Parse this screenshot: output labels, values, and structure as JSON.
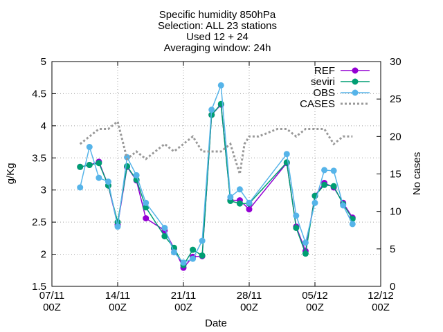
{
  "chart_data": {
    "type": "line",
    "title_lines": [
      "Specific humidity 850hPa",
      "Selection: ALL      23 stations",
      "Used 12 + 24",
      "Averaging window: 24h"
    ],
    "xlabel": "Date",
    "ylabel": "g/Kg",
    "y2label": "No cases",
    "x_range": [
      0,
      35
    ],
    "ylim": [
      1.5,
      5
    ],
    "y2lim": [
      0,
      30
    ],
    "y_ticks": [
      "1.5",
      "2",
      "2.5",
      "3",
      "3.5",
      "4",
      "4.5",
      "5"
    ],
    "y2_ticks": [
      "0",
      "5",
      "10",
      "15",
      "20",
      "25",
      "30"
    ],
    "x_ticks": [
      {
        "x": 0,
        "date": "07/11",
        "hour": "00Z"
      },
      {
        "x": 7,
        "date": "14/11",
        "hour": "00Z"
      },
      {
        "x": 14,
        "date": "21/11",
        "hour": "00Z"
      },
      {
        "x": 21,
        "date": "28/11",
        "hour": "00Z"
      },
      {
        "x": 28,
        "date": "05/12",
        "hour": "00Z"
      },
      {
        "x": 35,
        "date": "12/12",
        "hour": "00Z"
      }
    ],
    "grid": true,
    "legend_position": "top-right",
    "series": [
      {
        "name": "REF",
        "color": "#9400d3",
        "marker": "circle",
        "axis": "y",
        "points": [
          [
            3.0,
            3.36
          ],
          [
            4.0,
            3.39
          ],
          [
            5.0,
            3.44
          ],
          [
            6.0,
            3.07
          ],
          [
            7.0,
            2.46
          ],
          [
            8.0,
            3.36
          ],
          [
            9.0,
            3.15
          ],
          [
            10.0,
            2.56
          ],
          [
            12.0,
            2.37
          ],
          [
            13.0,
            2.09
          ],
          [
            14.0,
            1.79
          ],
          [
            15.0,
            1.96
          ],
          [
            16.0,
            1.97
          ],
          [
            17.0,
            4.17
          ],
          [
            18.0,
            4.33
          ],
          [
            19.0,
            2.84
          ],
          [
            20.0,
            2.84
          ],
          [
            21.0,
            2.7
          ],
          [
            25.0,
            3.42
          ],
          [
            26.0,
            2.43
          ],
          [
            27.0,
            2.05
          ],
          [
            28.0,
            2.91
          ],
          [
            29.0,
            3.11
          ],
          [
            30.0,
            3.04
          ],
          [
            31.0,
            2.8
          ],
          [
            32.0,
            2.57
          ]
        ]
      },
      {
        "name": "seviri",
        "color": "#009e73",
        "marker": "circle",
        "axis": "y",
        "points": [
          [
            3.0,
            3.36
          ],
          [
            4.0,
            3.39
          ],
          [
            5.0,
            3.42
          ],
          [
            6.0,
            3.07
          ],
          [
            7.0,
            2.5
          ],
          [
            8.0,
            3.37
          ],
          [
            9.0,
            3.16
          ],
          [
            10.0,
            2.73
          ],
          [
            12.0,
            2.28
          ],
          [
            13.0,
            2.1
          ],
          [
            14.0,
            1.83
          ],
          [
            15.0,
            2.07
          ],
          [
            16.0,
            1.98
          ],
          [
            17.0,
            4.17
          ],
          [
            18.0,
            4.34
          ],
          [
            19.0,
            2.83
          ],
          [
            20.0,
            2.79
          ],
          [
            21.0,
            2.79
          ],
          [
            25.0,
            3.43
          ],
          [
            26.0,
            2.41
          ],
          [
            27.0,
            2.01
          ],
          [
            28.0,
            2.91
          ],
          [
            29.0,
            3.08
          ],
          [
            30.0,
            3.06
          ],
          [
            31.0,
            2.78
          ],
          [
            32.0,
            2.55
          ]
        ]
      },
      {
        "name": "OBS",
        "color": "#56b4e9",
        "marker": "circle",
        "axis": "y",
        "points": [
          [
            3.0,
            3.04
          ],
          [
            4.0,
            3.67
          ],
          [
            5.0,
            3.19
          ],
          [
            6.0,
            3.13
          ],
          [
            7.0,
            2.43
          ],
          [
            8.0,
            3.51
          ],
          [
            9.0,
            3.23
          ],
          [
            10.0,
            2.8
          ],
          [
            12.0,
            2.41
          ],
          [
            13.0,
            2.03
          ],
          [
            14.0,
            1.87
          ],
          [
            15.0,
            1.93
          ],
          [
            16.0,
            2.21
          ],
          [
            17.0,
            4.25
          ],
          [
            18.0,
            4.63
          ],
          [
            19.0,
            2.89
          ],
          [
            20.0,
            3.01
          ],
          [
            21.0,
            2.8
          ],
          [
            25.0,
            3.56
          ],
          [
            26.0,
            2.6
          ],
          [
            27.0,
            2.18
          ],
          [
            28.0,
            2.8
          ],
          [
            29.0,
            3.31
          ],
          [
            30.0,
            3.3
          ],
          [
            31.0,
            2.76
          ],
          [
            32.0,
            2.47
          ]
        ]
      },
      {
        "name": "CASES",
        "color": "#999999",
        "marker": "none",
        "dashed": true,
        "axis": "y2",
        "points": [
          [
            3.0,
            19
          ],
          [
            4.0,
            20
          ],
          [
            5.0,
            21
          ],
          [
            6.0,
            21
          ],
          [
            7.0,
            22
          ],
          [
            8.0,
            17
          ],
          [
            9.0,
            18
          ],
          [
            10.0,
            17
          ],
          [
            11.0,
            18
          ],
          [
            12.0,
            19
          ],
          [
            13.0,
            18
          ],
          [
            14.0,
            19
          ],
          [
            15.0,
            20
          ],
          [
            16.0,
            18
          ],
          [
            17.0,
            18
          ],
          [
            18.0,
            18
          ],
          [
            19.0,
            19
          ],
          [
            19.5,
            17
          ],
          [
            20.0,
            15
          ],
          [
            20.5,
            19
          ],
          [
            21.0,
            20
          ],
          [
            22.0,
            20
          ],
          [
            23.0,
            20.5
          ],
          [
            24.0,
            21
          ],
          [
            25.0,
            21
          ],
          [
            26.0,
            20
          ],
          [
            27.0,
            21
          ],
          [
            28.0,
            21
          ],
          [
            29.0,
            21
          ],
          [
            30.0,
            19
          ],
          [
            31.0,
            20
          ],
          [
            32.0,
            20
          ]
        ]
      }
    ]
  }
}
